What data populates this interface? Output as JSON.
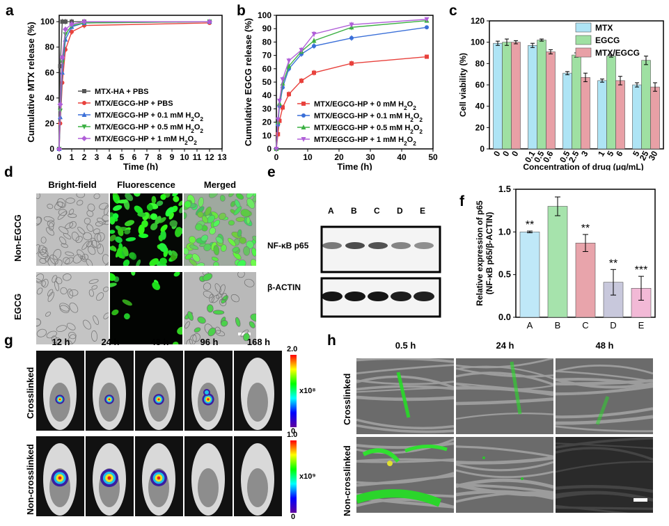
{
  "panel_labels": [
    "a",
    "b",
    "c",
    "d",
    "e",
    "f",
    "g",
    "h"
  ],
  "chart_data": [
    {
      "panel": "a",
      "type": "line",
      "xlabel": "Time (h)",
      "ylabel": "Cumulative MTX release (%)",
      "xlim": [
        0,
        13
      ],
      "ylim": [
        0,
        105
      ],
      "xticks": [
        0,
        1,
        2,
        3,
        4,
        5,
        6,
        7,
        8,
        9,
        10,
        11,
        12,
        13
      ],
      "yticks": [
        0,
        20,
        40,
        60,
        80,
        100
      ],
      "legend": "center-right",
      "series": [
        {
          "name": "MTX-HA + PBS",
          "color": "#555555",
          "marker": "square",
          "x": [
            0,
            0.083,
            0.25,
            0.5,
            1,
            2,
            12
          ],
          "y": [
            0,
            65,
            100,
            100,
            100,
            100,
            100
          ]
        },
        {
          "name": "MTX/EGCG-HP + PBS",
          "color": "#e8413c",
          "marker": "circle",
          "x": [
            0,
            0.083,
            0.25,
            0.5,
            1,
            2,
            12
          ],
          "y": [
            0,
            20,
            52,
            78,
            92,
            97,
            99
          ]
        },
        {
          "name": "MTX/EGCG-HP + 0.1 mM H2O2",
          "color": "#3a6fd8",
          "marker": "triangle",
          "x": [
            0,
            0.083,
            0.25,
            0.5,
            1,
            2,
            12
          ],
          "y": [
            0,
            25,
            60,
            86,
            96,
            99,
            100
          ]
        },
        {
          "name": "MTX/EGCG-HP + 0.5 mM H2O2",
          "color": "#3cb043",
          "marker": "tri-down",
          "x": [
            0,
            0.083,
            0.25,
            0.5,
            1,
            2,
            12
          ],
          "y": [
            0,
            30,
            68,
            90,
            97,
            99,
            100
          ]
        },
        {
          "name": "MTX/EGCG-HP + 1 mM H2O2",
          "color": "#b05fd8",
          "marker": "diamond",
          "x": [
            0,
            0.083,
            0.25,
            0.5,
            1,
            2,
            12
          ],
          "y": [
            0,
            35,
            72,
            94,
            98,
            100,
            100
          ]
        }
      ]
    },
    {
      "panel": "b",
      "type": "line",
      "xlabel": "Time (h)",
      "ylabel": "Cumulative EGCG release (%)",
      "xlim": [
        0,
        50
      ],
      "ylim": [
        0,
        100
      ],
      "xticks": [
        0,
        10,
        20,
        30,
        40,
        50
      ],
      "yticks": [
        0,
        10,
        20,
        30,
        40,
        50,
        60,
        70,
        80,
        90,
        100
      ],
      "legend": "bottom-right",
      "series": [
        {
          "name": "MTX/EGCG-HP + 0 mM H2O2",
          "color": "#e8413c",
          "marker": "square",
          "x": [
            0,
            0.5,
            1,
            2,
            4,
            8,
            12,
            24,
            48
          ],
          "y": [
            0,
            11,
            21,
            31,
            41,
            51,
            57,
            64,
            69
          ]
        },
        {
          "name": "MTX/EGCG-HP + 0.1 mM H2O2",
          "color": "#3a6fd8",
          "marker": "circle",
          "x": [
            0,
            0.5,
            1,
            2,
            4,
            8,
            12,
            24,
            48
          ],
          "y": [
            0,
            18,
            32,
            46,
            60,
            71,
            77,
            83,
            91
          ]
        },
        {
          "name": "MTX/EGCG-HP + 0.5 mM H2O2",
          "color": "#3cb043",
          "marker": "triangle",
          "x": [
            0,
            0.5,
            1,
            2,
            4,
            8,
            12,
            24,
            48
          ],
          "y": [
            0,
            20,
            34,
            49,
            62,
            73,
            81,
            91,
            96
          ]
        },
        {
          "name": "MTX/EGCG-HP + 1 mM H2O2",
          "color": "#b05fd8",
          "marker": "tri-down",
          "x": [
            0,
            0.5,
            1,
            2,
            4,
            8,
            12,
            24,
            48
          ],
          "y": [
            0,
            22,
            36,
            52,
            66,
            74,
            86,
            93,
            97
          ]
        }
      ]
    },
    {
      "panel": "c",
      "type": "bar",
      "xlabel": "Concentration of drug (μg/mL)",
      "ylabel": "Cell viability (%)",
      "ylim": [
        0,
        120
      ],
      "yticks": [
        0,
        20,
        40,
        60,
        80,
        100,
        120
      ],
      "legend": "top-right",
      "group_tick_labels": [
        [
          "0",
          "0",
          "0"
        ],
        [
          "0.1",
          "0.5",
          "0.6"
        ],
        [
          "0.5",
          "2.5",
          "3"
        ],
        [
          "1",
          "5",
          "6"
        ],
        [
          "5",
          "25",
          "30"
        ]
      ],
      "series": [
        {
          "name": "MTX",
          "color": "#aee4f5",
          "values": [
            99,
            97,
            71,
            64,
            60
          ],
          "errors": [
            2,
            2,
            1.5,
            1.5,
            2
          ]
        },
        {
          "name": "EGCG",
          "color": "#9fe0a2",
          "values": [
            100,
            102,
            88,
            87,
            83
          ],
          "errors": [
            3,
            1,
            2,
            1,
            4
          ]
        },
        {
          "name": "MTX/EGCG",
          "color": "#e8a0a6",
          "values": [
            100,
            91,
            67,
            64,
            58
          ],
          "errors": [
            1.5,
            2,
            4,
            4,
            4
          ]
        }
      ]
    },
    {
      "panel": "f",
      "type": "bar",
      "ylabel": "Relative expression of p65 (NF-κB p65/β-ACTIN)",
      "ylim": [
        0,
        1.5
      ],
      "yticks": [
        "0.0",
        "0.5",
        "1.0",
        "1.5"
      ],
      "categories": [
        "A",
        "B",
        "C",
        "D",
        "E"
      ],
      "values": [
        1.0,
        1.3,
        0.87,
        0.41,
        0.34
      ],
      "errors": [
        0.01,
        0.11,
        0.1,
        0.15,
        0.14
      ],
      "colors": [
        "#bfe8f8",
        "#a6e3ac",
        "#e8a4ab",
        "#c8c8dc",
        "#f2b9d6"
      ],
      "annotations": [
        "**",
        "",
        "**",
        "**",
        "***"
      ]
    }
  ],
  "panel_d": {
    "col_headers": [
      "Bright-field",
      "Fluorescence",
      "Merged"
    ],
    "row_labels": [
      "Non-EGCG",
      "EGCG"
    ]
  },
  "panel_e": {
    "lanes": [
      "A",
      "B",
      "C",
      "D",
      "E"
    ],
    "rows": [
      "NF-κB p65",
      "β-ACTIN"
    ],
    "p65_intensity": [
      0.55,
      0.75,
      0.72,
      0.5,
      0.45
    ],
    "actin_intensity": [
      0.95,
      0.95,
      0.95,
      0.92,
      0.9
    ]
  },
  "panel_g": {
    "timepoints": [
      "12 h",
      "24 h",
      "48 h",
      "96 h",
      "168 h"
    ],
    "rows": [
      {
        "label": "Crosslinked",
        "scale_max": "2.0",
        "scale_min": "0",
        "scale_unit": "x10⁸"
      },
      {
        "label": "Non-crosslinked",
        "scale_max": "1.0",
        "scale_min": "0",
        "scale_unit": "x10⁹"
      }
    ]
  },
  "panel_h": {
    "timepoints": [
      "0.5 h",
      "24 h",
      "48 h"
    ],
    "row_labels": [
      "Crosslinked",
      "Non-crosslinked"
    ]
  }
}
